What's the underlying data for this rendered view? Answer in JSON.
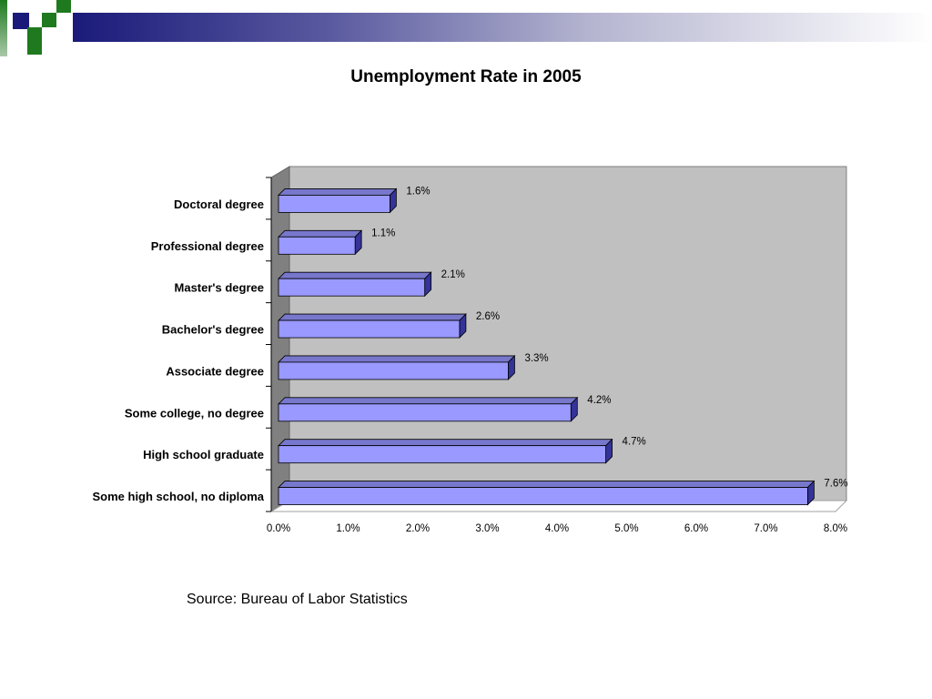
{
  "colors": {
    "bar_face": "#9999ff",
    "bar_top": "#7777cc",
    "bar_side": "#333399",
    "plot_bg": "#c0c0c0",
    "plot_wall": "#808080",
    "logo_blue": "#1a1a7a",
    "logo_green": "#1f7a1f"
  },
  "chart_data": {
    "type": "bar",
    "orientation": "horizontal",
    "title": "Unemployment Rate in 2005",
    "categories": [
      "Doctoral degree",
      "Professional degree",
      "Master's degree",
      "Bachelor's degree",
      "Associate degree",
      "Some college, no degree",
      "High school graduate",
      "Some high school, no diploma"
    ],
    "values": [
      1.6,
      1.1,
      2.1,
      2.6,
      3.3,
      4.2,
      4.7,
      7.6
    ],
    "data_labels": [
      "1.6%",
      "1.1%",
      "2.1%",
      "2.6%",
      "3.3%",
      "4.2%",
      "4.7%",
      "7.6%"
    ],
    "x_ticks": [
      "0.0%",
      "1.0%",
      "2.0%",
      "3.0%",
      "4.0%",
      "5.0%",
      "6.0%",
      "7.0%",
      "8.0%"
    ],
    "xlim": [
      0,
      8
    ],
    "xlabel": "",
    "ylabel": "",
    "grid": false,
    "legend": "none",
    "style": "3d"
  },
  "source_note": "Source:  Bureau of Labor Statistics"
}
